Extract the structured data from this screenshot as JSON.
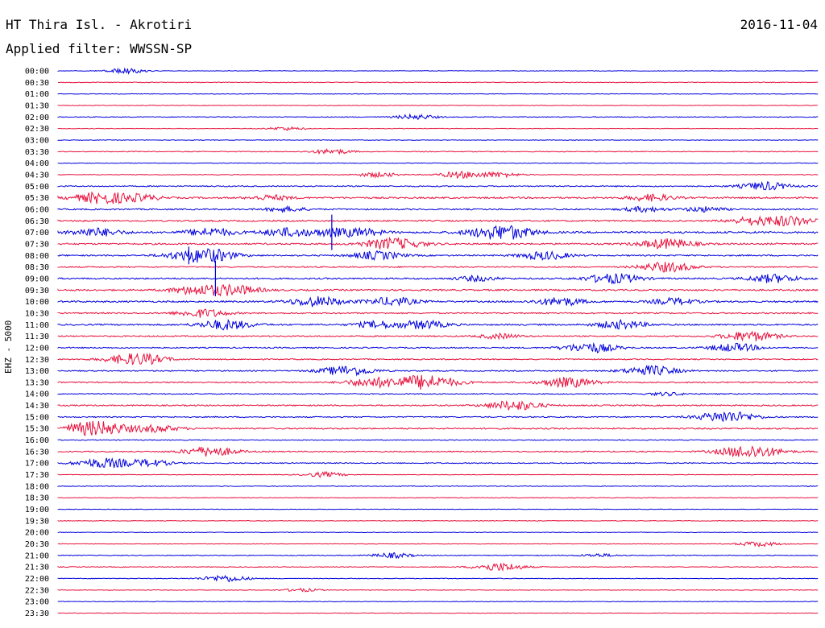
{
  "header": {
    "station": "HT Thira Isl. - Akrotiri",
    "date": "2016-11-04",
    "filter": "Applied filter: WWSSN-SP"
  },
  "colors": {
    "trace_a": "#0000dd",
    "trace_b": "#e8103c"
  },
  "chart_data": {
    "type": "line",
    "title": "HT Thira Isl. - Akrotiri",
    "date": "2016-11-04",
    "ylabel": "EHZ - 5000",
    "row_labels": [
      "00:00",
      "00:30",
      "01:00",
      "01:30",
      "02:00",
      "02:30",
      "03:00",
      "03:30",
      "04:00",
      "04:30",
      "05:00",
      "05:30",
      "06:00",
      "06:30",
      "07:00",
      "07:30",
      "08:00",
      "08:30",
      "09:00",
      "09:30",
      "10:00",
      "10:30",
      "11:00",
      "11:30",
      "12:00",
      "12:30",
      "13:00",
      "13:30",
      "14:00",
      "14:30",
      "15:00",
      "15:30",
      "16:00",
      "16:30",
      "17:00",
      "17:30",
      "18:00",
      "18:30",
      "19:00",
      "19:30",
      "20:00",
      "20:30",
      "21:00",
      "21:30",
      "22:00",
      "22:30",
      "23:00",
      "23:30"
    ],
    "row_minutes": 30,
    "row_colors": [
      "blue",
      "red"
    ],
    "noise_level": [
      0.5,
      0.6,
      0.5,
      0.5,
      0.7,
      0.5,
      0.5,
      0.7,
      0.6,
      0.6,
      1.0,
      1.4,
      1.2,
      1.3,
      1.6,
      1.4,
      1.2,
      1.1,
      1.3,
      1.4,
      1.4,
      1.2,
      1.3,
      1.1,
      1.1,
      1.0,
      1.0,
      1.1,
      0.9,
      1.1,
      1.0,
      1.2,
      0.7,
      1.0,
      0.9,
      0.5,
      0.7,
      0.6,
      0.5,
      0.5,
      0.5,
      0.5,
      0.7,
      0.7,
      0.6,
      0.5,
      0.5,
      0.5
    ],
    "events": [
      [
        [
          0.09,
          3
        ]
      ],
      [],
      [],
      [],
      [
        [
          0.47,
          3
        ]
      ],
      [
        [
          0.3,
          2
        ]
      ],
      [],
      [
        [
          0.36,
          3
        ]
      ],
      [],
      [
        [
          0.42,
          3
        ],
        [
          0.53,
          4
        ],
        [
          0.58,
          3
        ]
      ],
      [
        [
          0.93,
          5
        ]
      ],
      [
        [
          0.06,
          7
        ],
        [
          0.11,
          3
        ],
        [
          0.28,
          3
        ],
        [
          0.78,
          4
        ]
      ],
      [
        [
          0.3,
          3
        ],
        [
          0.77,
          3
        ],
        [
          0.85,
          3
        ]
      ],
      [
        [
          0.91,
          4
        ],
        [
          0.96,
          6
        ]
      ],
      [
        [
          0.05,
          5
        ],
        [
          0.2,
          5
        ],
        [
          0.3,
          5
        ],
        [
          0.36,
          4
        ],
        [
          0.4,
          4
        ],
        [
          0.57,
          6
        ],
        [
          0.6,
          5
        ]
      ],
      [
        [
          0.44,
          7
        ],
        [
          0.8,
          6
        ]
      ],
      [
        [
          0.18,
          7
        ],
        [
          0.21,
          4
        ],
        [
          0.42,
          5
        ],
        [
          0.64,
          5
        ]
      ],
      [
        [
          0.8,
          6
        ]
      ],
      [
        [
          0.55,
          3
        ],
        [
          0.73,
          6
        ],
        [
          0.94,
          5
        ]
      ],
      [
        [
          0.18,
          5
        ],
        [
          0.23,
          6
        ]
      ],
      [
        [
          0.34,
          6
        ],
        [
          0.44,
          5
        ],
        [
          0.66,
          5
        ],
        [
          0.81,
          4
        ]
      ],
      [
        [
          0.19,
          5
        ]
      ],
      [
        [
          0.22,
          6
        ],
        [
          0.42,
          4
        ],
        [
          0.48,
          5
        ],
        [
          0.74,
          5
        ]
      ],
      [
        [
          0.58,
          3
        ],
        [
          0.91,
          6
        ]
      ],
      [
        [
          0.7,
          6
        ],
        [
          0.89,
          5
        ]
      ],
      [
        [
          0.09,
          5
        ],
        [
          0.12,
          4
        ]
      ],
      [
        [
          0.38,
          6
        ],
        [
          0.78,
          6
        ]
      ],
      [
        [
          0.41,
          5
        ],
        [
          0.48,
          9
        ],
        [
          0.67,
          6
        ]
      ],
      [
        [
          0.8,
          2
        ]
      ],
      [
        [
          0.6,
          6
        ]
      ],
      [
        [
          0.88,
          7
        ]
      ],
      [
        [
          0.05,
          9
        ],
        [
          0.13,
          4
        ]
      ],
      [],
      [
        [
          0.2,
          6
        ],
        [
          0.91,
          8
        ]
      ],
      [
        [
          0.06,
          6
        ],
        [
          0.12,
          4
        ]
      ],
      [
        [
          0.35,
          3
        ]
      ],
      [],
      [],
      [],
      [],
      [],
      [
        [
          0.92,
          3
        ]
      ],
      [
        [
          0.44,
          3
        ],
        [
          0.71,
          2
        ]
      ],
      [
        [
          0.58,
          5
        ]
      ],
      [
        [
          0.22,
          4
        ]
      ],
      [
        [
          0.32,
          2
        ]
      ],
      [],
      []
    ],
    "spikes": [
      {
        "row": 14,
        "x": 0.36,
        "amplitude": 1.0
      },
      {
        "row": 18,
        "x": 0.207,
        "amplitude": 1.0
      },
      {
        "row": 16,
        "x": 0.172,
        "amplitude": 0.5
      }
    ]
  }
}
